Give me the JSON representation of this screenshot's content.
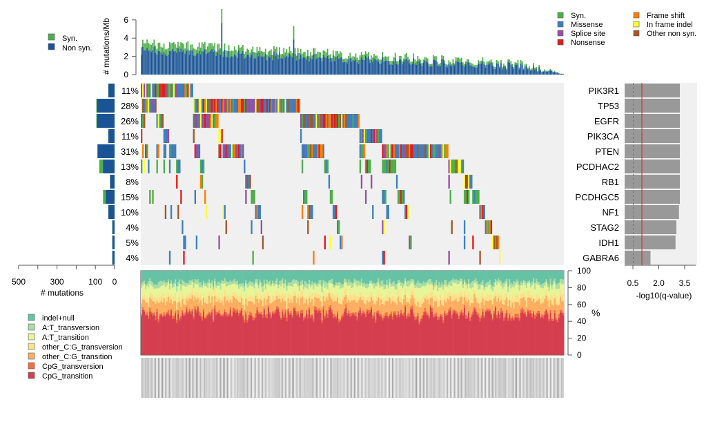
{
  "chart_data": {
    "type": "oncoplot",
    "n_samples": 300,
    "colors": {
      "syn": "#4daf4a",
      "nonsyn": "#1a5494",
      "missense": "#3f7fbf",
      "splice": "#984ea3",
      "nonsense": "#e41a1c",
      "frameshift": "#ff7f00",
      "inframe": "#ffff33",
      "other": "#a65628",
      "bg": "#f0f0f0",
      "qbar": "#999999",
      "qline": "#e41a1c",
      "qdash": "#8a5fb0"
    },
    "tmb": {
      "ylabel": "# mutations/Mb",
      "yticks": [
        "0",
        "2",
        "4",
        "6"
      ],
      "ylim": [
        0,
        7.2
      ],
      "legend": [
        "Syn.",
        "Non syn."
      ]
    },
    "mutation_legend": [
      "Syn.",
      "Missense",
      "Splice site",
      "Nonsense",
      "Frame shift",
      "In frame indel",
      "Other non syn."
    ],
    "genes": [
      {
        "name": "PIK3R1",
        "pct": "11%",
        "count": 33,
        "q": 3.2
      },
      {
        "name": "TP53",
        "pct": "28%",
        "count": 95,
        "q": 3.2
      },
      {
        "name": "EGFR",
        "pct": "26%",
        "count": 95,
        "q": 3.2
      },
      {
        "name": "PIK3CA",
        "pct": "11%",
        "count": 33,
        "q": 3.2
      },
      {
        "name": "PTEN",
        "pct": "31%",
        "count": 90,
        "q": 3.2
      },
      {
        "name": "PCDHAC2",
        "pct": "13%",
        "count": 80,
        "q": 3.2
      },
      {
        "name": "RB1",
        "pct": "8%",
        "count": 24,
        "q": 3.2
      },
      {
        "name": "PCDHGC5",
        "pct": "15%",
        "count": 60,
        "q": 3.2
      },
      {
        "name": "NF1",
        "pct": "10%",
        "count": 33,
        "q": 3.15
      },
      {
        "name": "STAG2",
        "pct": "4%",
        "count": 12,
        "q": 3.0
      },
      {
        "name": "IDH1",
        "pct": "5%",
        "count": 12,
        "q": 2.95
      },
      {
        "name": "GABRA6",
        "pct": "4%",
        "count": 12,
        "q": 1.5
      }
    ],
    "count_axis": {
      "label": "# mutations",
      "ticks": [
        "500",
        "300",
        "100",
        "0"
      ],
      "range": [
        500,
        0
      ]
    },
    "q_axis": {
      "label": "-log10(q-value)",
      "ticks": [
        "0.5",
        "2.0",
        "3.5"
      ],
      "range": [
        0,
        4.1
      ],
      "threshold": 1.0,
      "dashed": 0.5
    },
    "spectrum": {
      "ylabel": "%",
      "yticks": [
        "0",
        "20",
        "40",
        "60",
        "80",
        "100"
      ],
      "legend": [
        "indel+null",
        "A:T_transversion",
        "A:T_transition",
        "other_C:G_transversion",
        "other_C:G_transition",
        "CpG_transversion",
        "CpG_transition"
      ],
      "colors": [
        "#66c2a5",
        "#abdda4",
        "#e6f598",
        "#fee08b",
        "#fdae61",
        "#f46d43",
        "#d53e4f"
      ]
    }
  }
}
